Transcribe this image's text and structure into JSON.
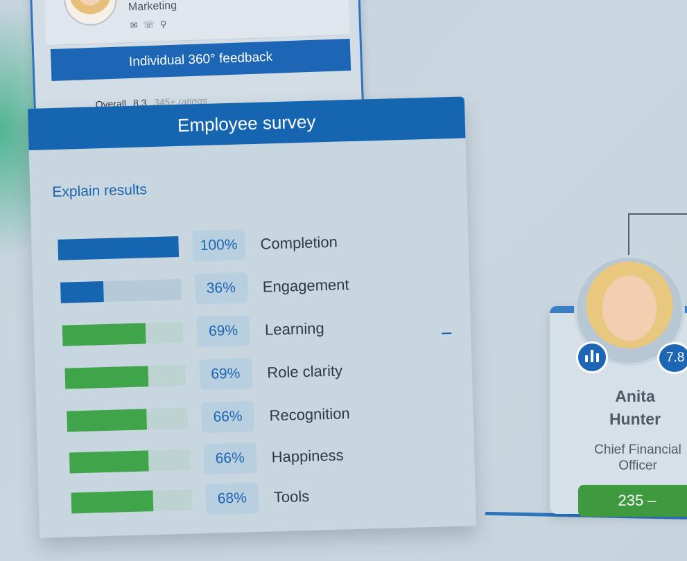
{
  "profile": {
    "department": "Marketing",
    "feedback_title": "Individual 360° feedback",
    "overall_label": "Overall",
    "overall_score": "8.3",
    "ratings_text": "345+ ratings"
  },
  "survey": {
    "title": "Employee survey",
    "explain_link": "Explain results",
    "metrics": [
      {
        "label": "Completion",
        "percent_text": "100%",
        "value": 1.0,
        "color": "#1565b0"
      },
      {
        "label": "Engagement",
        "percent_text": "36%",
        "value": 0.36,
        "color": "#1565b0"
      },
      {
        "label": "Learning",
        "percent_text": "69%",
        "value": 0.69,
        "color": "#3fa44a"
      },
      {
        "label": "Role clarity",
        "percent_text": "69%",
        "value": 0.69,
        "color": "#3fa44a"
      },
      {
        "label": "Recognition",
        "percent_text": "66%",
        "value": 0.66,
        "color": "#3fa44a"
      },
      {
        "label": "Happiness",
        "percent_text": "66%",
        "value": 0.66,
        "color": "#3fa44a"
      },
      {
        "label": "Tools",
        "percent_text": "68%",
        "value": 0.68,
        "color": "#3fa44a"
      }
    ],
    "collapse_symbol": "–"
  },
  "org_card": {
    "first_name": "Anita",
    "last_name": "Hunter",
    "title_line1": "Chief Financial",
    "title_line2": "Officer",
    "score": "7.8",
    "count_label": "235 –"
  },
  "colors": {
    "primary_blue": "#1565b0",
    "green": "#3fa44a"
  }
}
